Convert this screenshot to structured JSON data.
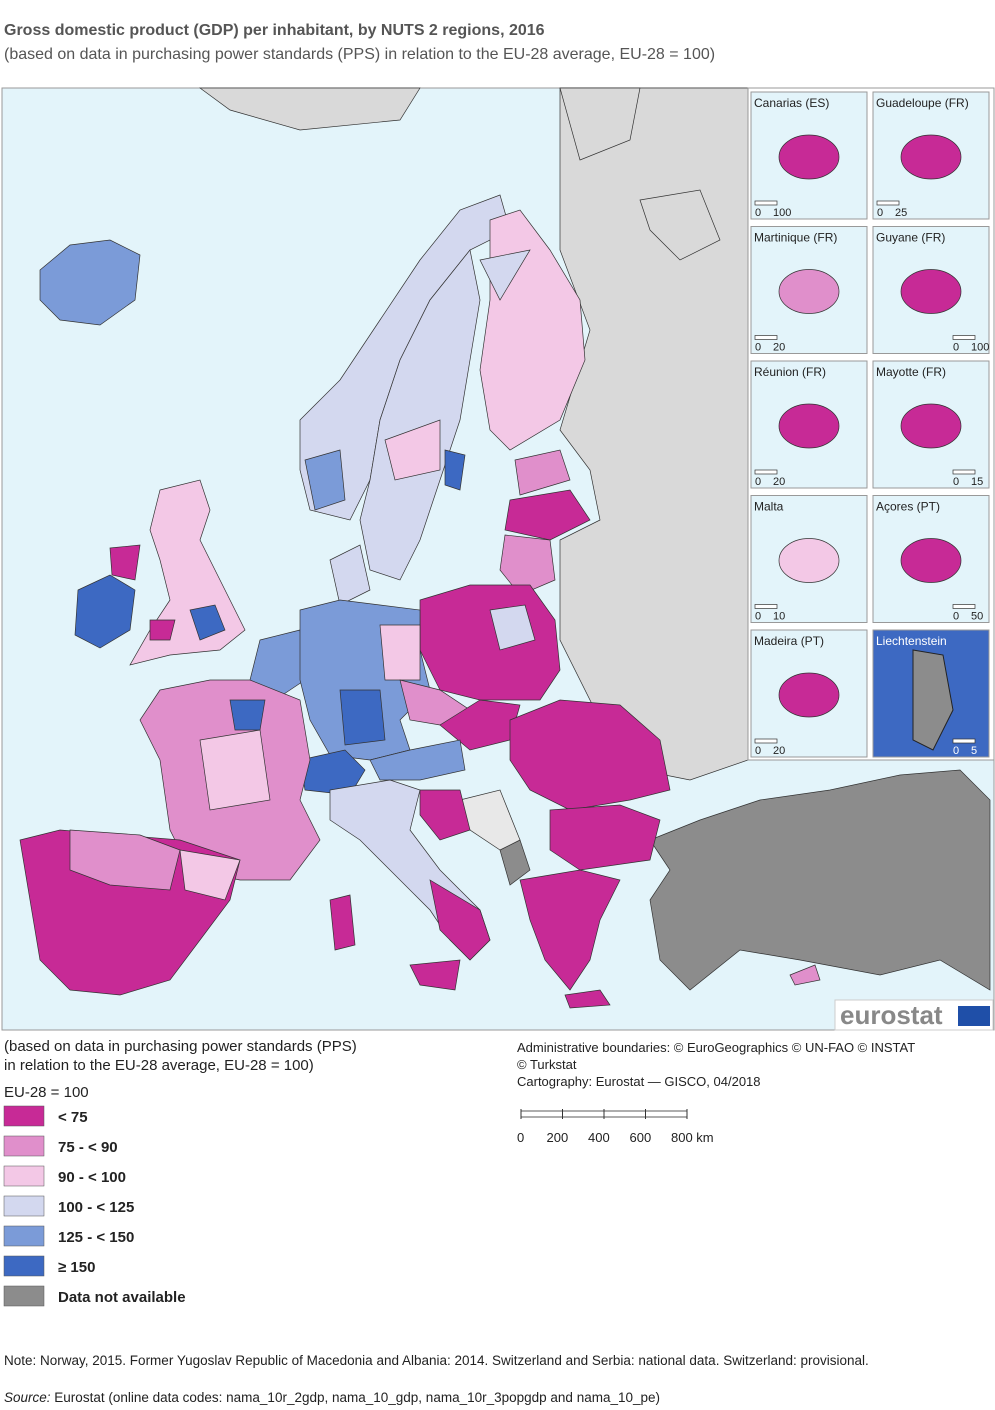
{
  "header": {
    "title": "Gross domestic product (GDP) per inhabitant, by NUTS 2 regions, 2016",
    "subtitle": "(based on data in purchasing power standards (PPS) in relation to the EU-28 average, EU-28 = 100)"
  },
  "insets": [
    {
      "label": "Canarias (ES)",
      "scale": [
        "0",
        "100"
      ],
      "color": "#c72a96"
    },
    {
      "label": "Guadeloupe (FR)",
      "scale": [
        "0",
        "25"
      ],
      "color": "#c72a96"
    },
    {
      "label": "Martinique (FR)",
      "scale": [
        "0",
        "20"
      ],
      "color": "#e08fcb"
    },
    {
      "label": "Guyane (FR)",
      "scale": [
        "0",
        "100"
      ],
      "color": "#c72a96"
    },
    {
      "label": "Réunion (FR)",
      "scale": [
        "0",
        "20"
      ],
      "color": "#c72a96"
    },
    {
      "label": "Mayotte (FR)",
      "scale": [
        "0",
        "15"
      ],
      "color": "#c72a96"
    },
    {
      "label": "Malta",
      "scale": [
        "0",
        "10"
      ],
      "color": "#f3c8e6"
    },
    {
      "label": "Açores (PT)",
      "scale": [
        "0",
        "50"
      ],
      "color": "#c72a96"
    },
    {
      "label": "Madeira (PT)",
      "scale": [
        "0",
        "20"
      ],
      "color": "#c72a96"
    },
    {
      "label": "Liechtenstein",
      "scale": [
        "0",
        "5"
      ],
      "color": "#3d69c2"
    }
  ],
  "logo": "eurostat",
  "legend": {
    "lines": [
      "(based on data in purchasing power standards (PPS)",
      "in relation to the EU-28 average, EU-28 = 100)"
    ],
    "heading": "EU-28 = 100",
    "classes": [
      {
        "label": "< 75",
        "color": "#c72a96"
      },
      {
        "label": "75 - < 90",
        "color": "#e08fcb"
      },
      {
        "label": "90 - < 100",
        "color": "#f3c8e6"
      },
      {
        "label": "100 - < 125",
        "color": "#d3d8ef"
      },
      {
        "label": "125 - < 150",
        "color": "#7b9bd8"
      },
      {
        "label": "≥ 150",
        "color": "#3d69c2"
      },
      {
        "label": "Data not available",
        "color": "#8c8c8c"
      }
    ]
  },
  "credits": [
    "Administrative boundaries: © EuroGeographics © UN-FAO © INSTAT",
    "© Turkstat",
    "Cartography: Eurostat — GISCO, 04/2018"
  ],
  "scale_bar": [
    "0",
    "200",
    "400",
    "600",
    "800 km"
  ],
  "note": "Note: Norway, 2015. Former Yugoslav Republic of Macedonia and Albania: 2014. Switzerland and Serbia: national data. Switzerland: provisional.",
  "source": {
    "label": "Source:",
    "text": "Eurostat (online data codes: nama_10r_2gdp, nama_10_gdp, nama_10r_3popgdp and nama_10_pe)"
  }
}
